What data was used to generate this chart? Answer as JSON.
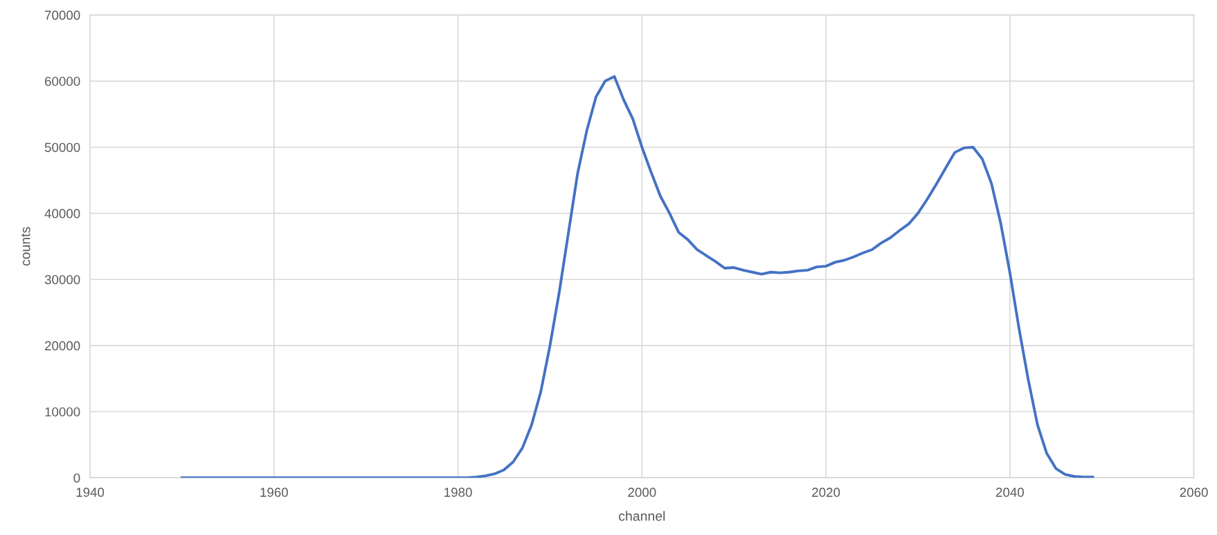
{
  "chart_data": {
    "type": "line",
    "xlabel": "channel",
    "ylabel": "counts",
    "x": [
      1950,
      1951,
      1952,
      1953,
      1954,
      1955,
      1956,
      1957,
      1958,
      1959,
      1960,
      1961,
      1962,
      1963,
      1964,
      1965,
      1966,
      1967,
      1968,
      1969,
      1970,
      1971,
      1972,
      1973,
      1974,
      1975,
      1976,
      1977,
      1978,
      1979,
      1980,
      1981,
      1982,
      1983,
      1984,
      1985,
      1986,
      1987,
      1988,
      1989,
      1990,
      1991,
      1992,
      1993,
      1994,
      1995,
      1996,
      1997,
      1998,
      1999,
      2000,
      2001,
      2002,
      2003,
      2004,
      2005,
      2006,
      2007,
      2008,
      2009,
      2010,
      2011,
      2012,
      2013,
      2014,
      2015,
      2016,
      2017,
      2018,
      2019,
      2020,
      2021,
      2022,
      2023,
      2024,
      2025,
      2026,
      2027,
      2028,
      2029,
      2030,
      2031,
      2032,
      2033,
      2034,
      2035,
      2036,
      2037,
      2038,
      2039,
      2040,
      2041,
      2042,
      2043,
      2044,
      2045,
      2046,
      2047,
      2048,
      2049
    ],
    "series": [
      {
        "color": "#4472c4",
        "values": [
          0,
          0,
          0,
          0,
          0,
          0,
          0,
          0,
          0,
          0,
          0,
          0,
          0,
          0,
          0,
          0,
          0,
          0,
          0,
          0,
          0,
          0,
          0,
          0,
          0,
          0,
          0,
          0,
          0,
          0,
          0,
          0,
          100,
          300,
          600,
          1200,
          2400,
          4500,
          8000,
          13000,
          20000,
          28000,
          37000,
          46000,
          52500,
          57600,
          60000,
          60700,
          57200,
          54300,
          50000,
          46200,
          42600,
          40000,
          37100,
          36000,
          34500,
          33600,
          32700,
          31700,
          31800,
          31400,
          31100,
          30800,
          31100,
          31000,
          31100,
          31300,
          31400,
          31900,
          32000,
          32600,
          32900,
          33400,
          34000,
          34500,
          35500,
          36300,
          37400,
          38400,
          40000,
          42100,
          44400,
          46800,
          49200,
          49900,
          50000,
          48200,
          44500,
          38500,
          31000,
          22500,
          14800,
          8000,
          3700,
          1400,
          500,
          200,
          100,
          100
        ]
      }
    ],
    "xlim": [
      1940,
      2060
    ],
    "xticks": [
      1940,
      1960,
      1980,
      2000,
      2020,
      2040,
      2060
    ],
    "ylim": [
      0,
      70000
    ],
    "yticks": [
      0,
      10000,
      20000,
      30000,
      40000,
      50000,
      60000,
      70000
    ],
    "grid": true,
    "marker": "none",
    "line_style": "solid"
  }
}
